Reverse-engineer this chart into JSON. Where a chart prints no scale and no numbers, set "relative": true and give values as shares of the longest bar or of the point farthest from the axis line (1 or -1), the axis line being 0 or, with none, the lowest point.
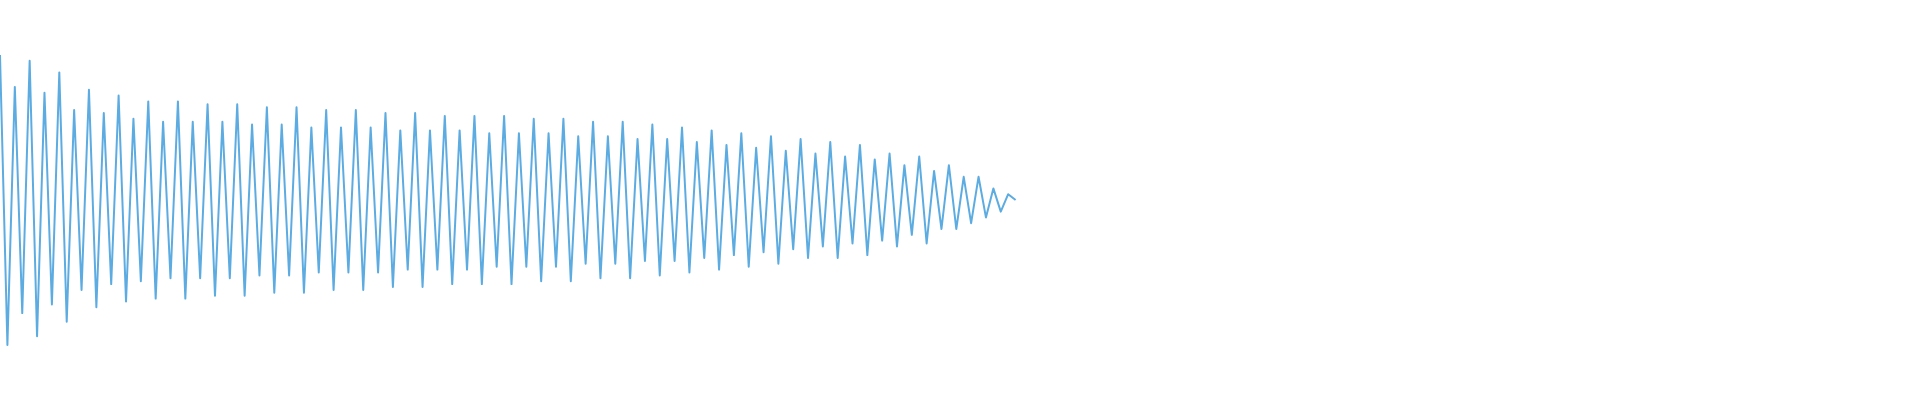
{
  "chart_data": {
    "type": "line",
    "relative": true,
    "color": "#5dace1",
    "categories": [
      null,
      null,
      null,
      null,
      null,
      null,
      null,
      null,
      null,
      null,
      null,
      null,
      null,
      null,
      null,
      null,
      null,
      null,
      null,
      null,
      null,
      null,
      null,
      null,
      null,
      null,
      null,
      null,
      null,
      null,
      null,
      null,
      null,
      null,
      null,
      null,
      null,
      null,
      null,
      null,
      null,
      null,
      null,
      null,
      null,
      null,
      null,
      null,
      null,
      null,
      null,
      null,
      null,
      null,
      null,
      null,
      null,
      null,
      null,
      null,
      null,
      null,
      null,
      null,
      null,
      null,
      null,
      null,
      null,
      null,
      null,
      null,
      null,
      null,
      null,
      null,
      null,
      null,
      null,
      null,
      null,
      null,
      null,
      null,
      null,
      null,
      null,
      null,
      null,
      null,
      null,
      null,
      null,
      null,
      null,
      null,
      null,
      null,
      null,
      null,
      null,
      null,
      null,
      null,
      null,
      null,
      null,
      null,
      null,
      null,
      null,
      null,
      null,
      null,
      null,
      null,
      null,
      null,
      null,
      null,
      null,
      null,
      null,
      null,
      null,
      null,
      null,
      null,
      null,
      null,
      null,
      null,
      null,
      null,
      null,
      null,
      null,
      null,
      null,
      null,
      null,
      null,
      null,
      null,
      null,
      null,
      null,
      null,
      null,
      null,
      null,
      null,
      null,
      null,
      null,
      null,
      null,
      null,
      null,
      null,
      null,
      null,
      null,
      null,
      null,
      null,
      null,
      null,
      null,
      null,
      null,
      null,
      null,
      null,
      null,
      null,
      null,
      null,
      null,
      null,
      null,
      null,
      null,
      null,
      null,
      null,
      null,
      null,
      null,
      null,
      null,
      null,
      null,
      null,
      null,
      null,
      null,
      null,
      null,
      null,
      null,
      null,
      null,
      null,
      null,
      null,
      null,
      null,
      null,
      null,
      null,
      null,
      null,
      null,
      null,
      null,
      null,
      null,
      null,
      null,
      null,
      null,
      null,
      null,
      null,
      null,
      null,
      null,
      null,
      null,
      null,
      null,
      null,
      null,
      null,
      null,
      null,
      null,
      null,
      null,
      null,
      null,
      null,
      null,
      null,
      null,
      null,
      null,
      null,
      null,
      null,
      null,
      null,
      null,
      null,
      null,
      null,
      null,
      null,
      null
    ],
    "values": [
      1.0,
      0.0,
      0.89,
      0.11,
      0.98,
      0.03,
      0.87,
      0.14,
      0.94,
      0.08,
      0.81,
      0.19,
      0.88,
      0.13,
      0.8,
      0.21,
      0.86,
      0.15,
      0.78,
      0.22,
      0.84,
      0.16,
      0.77,
      0.23,
      0.84,
      0.16,
      0.77,
      0.23,
      0.83,
      0.17,
      0.77,
      0.23,
      0.83,
      0.17,
      0.76,
      0.24,
      0.82,
      0.18,
      0.76,
      0.24,
      0.82,
      0.18,
      0.75,
      0.25,
      0.81,
      0.19,
      0.75,
      0.25,
      0.81,
      0.19,
      0.75,
      0.25,
      0.8,
      0.2,
      0.74,
      0.26,
      0.8,
      0.2,
      0.74,
      0.26,
      0.79,
      0.21,
      0.74,
      0.26,
      0.79,
      0.21,
      0.73,
      0.27,
      0.79,
      0.21,
      0.73,
      0.27,
      0.78,
      0.22,
      0.73,
      0.27,
      0.78,
      0.22,
      0.72,
      0.28,
      0.77,
      0.23,
      0.72,
      0.28,
      0.77,
      0.23,
      0.71,
      0.29,
      0.76,
      0.24,
      0.71,
      0.29,
      0.75,
      0.25,
      0.7,
      0.3,
      0.74,
      0.26,
      0.69,
      0.31,
      0.73,
      0.27,
      0.68,
      0.32,
      0.72,
      0.28,
      0.67,
      0.33,
      0.71,
      0.3,
      0.66,
      0.34,
      0.7,
      0.3,
      0.65,
      0.35,
      0.69,
      0.31,
      0.64,
      0.36,
      0.66,
      0.34,
      0.62,
      0.38,
      0.65,
      0.35,
      0.6,
      0.4,
      0.62,
      0.4,
      0.58,
      0.42,
      0.58,
      0.44,
      0.54,
      0.46,
      0.52,
      0.5,
      null,
      null,
      null,
      null,
      null,
      null,
      null,
      null,
      null,
      null,
      null,
      null,
      null,
      null,
      null,
      null,
      null,
      null,
      null,
      null,
      null,
      null,
      null,
      null,
      null,
      null,
      null,
      null,
      null,
      null,
      null,
      null,
      null,
      null,
      null,
      null,
      null,
      null,
      null,
      null,
      null,
      null,
      null,
      null,
      null,
      null,
      null,
      null,
      null,
      null,
      null,
      null,
      null,
      null,
      null,
      null,
      null,
      null,
      null,
      null,
      null,
      null,
      null,
      null,
      null,
      null,
      null,
      null,
      null,
      null,
      null,
      null,
      null,
      null,
      null,
      null,
      null,
      null,
      null,
      null,
      null,
      null,
      null,
      null,
      null,
      null,
      null,
      null,
      null,
      null,
      null,
      null,
      null,
      null,
      null,
      null,
      null,
      null,
      null,
      null,
      null,
      null,
      null,
      null,
      null,
      null,
      null,
      null,
      null,
      null,
      null,
      null,
      null,
      null,
      null,
      null,
      null,
      null,
      null,
      null,
      null,
      null
    ]
  }
}
